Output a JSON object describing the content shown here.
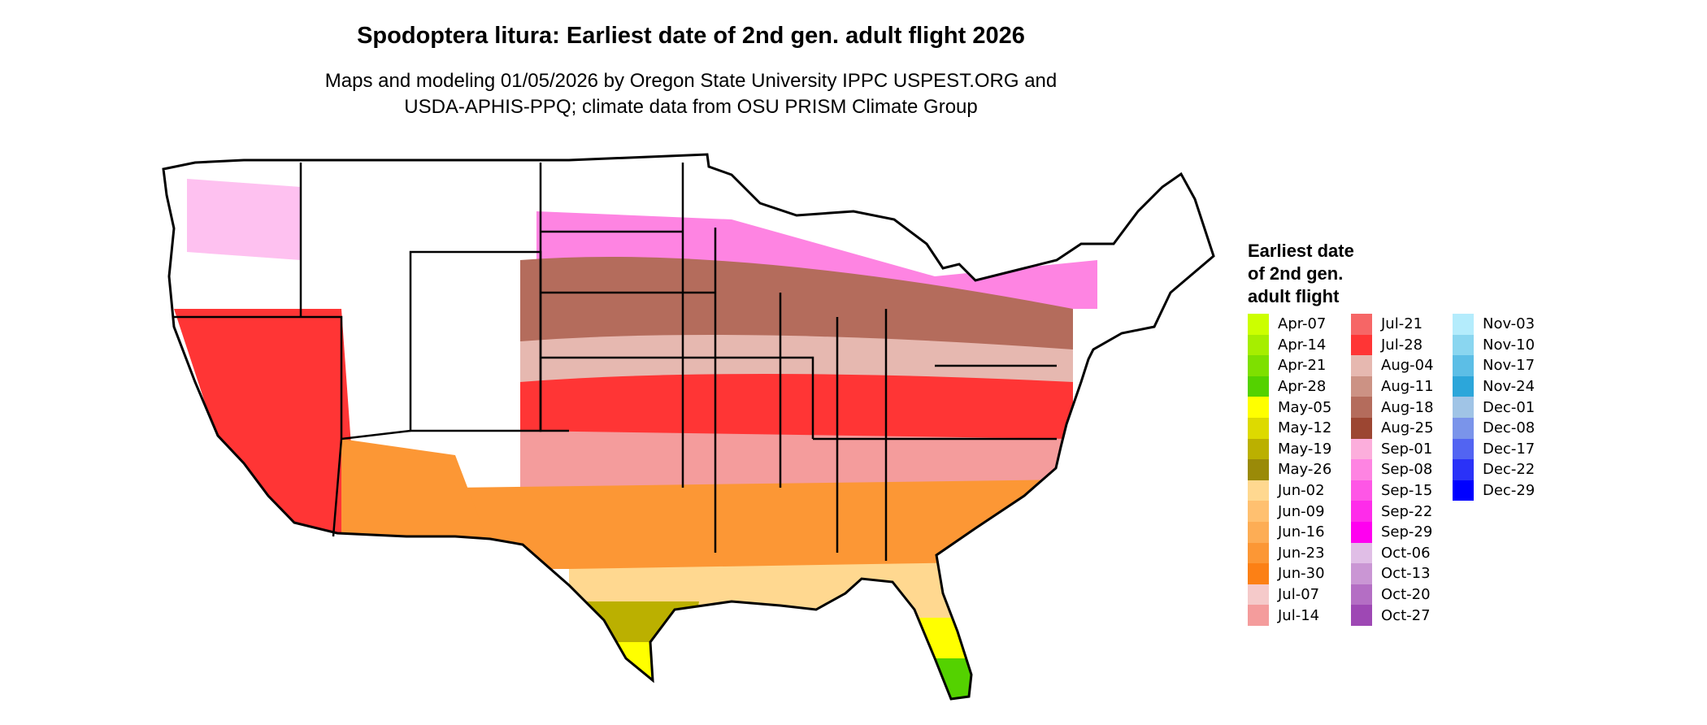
{
  "chart_data": {
    "type": "heatmap",
    "title": "Spodoptera litura: Earliest date of 2nd gen. adult flight 2026",
    "subtitle_lines": [
      "Maps and modeling 01/05/2026 by Oregon State University IPPC USPEST.ORG and",
      "USDA-APHIS-PPQ; climate data from OSU PRISM Climate Group"
    ],
    "legend_title_lines": [
      "Earliest date",
      "of 2nd gen.",
      "adult flight"
    ],
    "legend_placement": "right",
    "legend": [
      {
        "label": "Apr-07",
        "color": "#CCFF00"
      },
      {
        "label": "Apr-14",
        "color": "#A6EE00"
      },
      {
        "label": "Apr-21",
        "color": "#7EE000"
      },
      {
        "label": "Apr-28",
        "color": "#54D200"
      },
      {
        "label": "May-05",
        "color": "#FFFF00"
      },
      {
        "label": "May-12",
        "color": "#DDDA00"
      },
      {
        "label": "May-19",
        "color": "#BBB000"
      },
      {
        "label": "May-26",
        "color": "#9A8A08"
      },
      {
        "label": "Jun-02",
        "color": "#FFD890"
      },
      {
        "label": "Jun-09",
        "color": "#FFC070"
      },
      {
        "label": "Jun-16",
        "color": "#FDAD55"
      },
      {
        "label": "Jun-23",
        "color": "#FC9735"
      },
      {
        "label": "Jun-30",
        "color": "#FC8015"
      },
      {
        "label": "Jul-07",
        "color": "#F5CACA"
      },
      {
        "label": "Jul-14",
        "color": "#F49C9C"
      },
      {
        "label": "Jul-21",
        "color": "#F66666"
      },
      {
        "label": "Jul-28",
        "color": "#FF3535"
      },
      {
        "label": "Aug-04",
        "color": "#E6B8B0"
      },
      {
        "label": "Aug-11",
        "color": "#CC9284"
      },
      {
        "label": "Aug-18",
        "color": "#B46C5C"
      },
      {
        "label": "Aug-25",
        "color": "#9C4632"
      },
      {
        "label": "Sep-01",
        "color": "#FCAEDC"
      },
      {
        "label": "Sep-08",
        "color": "#FE84E2"
      },
      {
        "label": "Sep-15",
        "color": "#FE56E6"
      },
      {
        "label": "Sep-22",
        "color": "#FE2CEA"
      },
      {
        "label": "Sep-29",
        "color": "#FF00F0"
      },
      {
        "label": "Oct-06",
        "color": "#E0BEE6"
      },
      {
        "label": "Oct-13",
        "color": "#CA96D4"
      },
      {
        "label": "Oct-20",
        "color": "#B46EC4"
      },
      {
        "label": "Oct-27",
        "color": "#9E48B4"
      },
      {
        "label": "Nov-03",
        "color": "#B4ECFC"
      },
      {
        "label": "Nov-10",
        "color": "#8AD6F0"
      },
      {
        "label": "Nov-17",
        "color": "#5CBEE6"
      },
      {
        "label": "Nov-24",
        "color": "#2CA6DA"
      },
      {
        "label": "Dec-01",
        "color": "#A0C4E6"
      },
      {
        "label": "Dec-08",
        "color": "#7A94EA"
      },
      {
        "label": "Dec-17",
        "color": "#5264F2"
      },
      {
        "label": "Dec-22",
        "color": "#2A32F8"
      },
      {
        "label": "Dec-29",
        "color": "#0000FF"
      }
    ],
    "legend_columns": [
      15,
      15,
      9
    ],
    "no_data_color": "#FFFFFF",
    "region_values": [
      {
        "region": "northern-tier",
        "label": "Sep-08"
      },
      {
        "region": "upper-midwest",
        "label": "Aug-18"
      },
      {
        "region": "central",
        "label": "Aug-04"
      },
      {
        "region": "mid-latitude",
        "label": "Jul-28"
      },
      {
        "region": "southern-plains",
        "label": "Jul-14"
      },
      {
        "region": "gulf-states",
        "label": "Jun-23"
      },
      {
        "region": "gulf-coast",
        "label": "Jun-02"
      },
      {
        "region": "south-texas",
        "label": "May-19"
      },
      {
        "region": "texas-tip",
        "label": "May-05"
      },
      {
        "region": "central-florida",
        "label": "May-05"
      },
      {
        "region": "south-florida",
        "label": "Apr-28"
      }
    ]
  }
}
